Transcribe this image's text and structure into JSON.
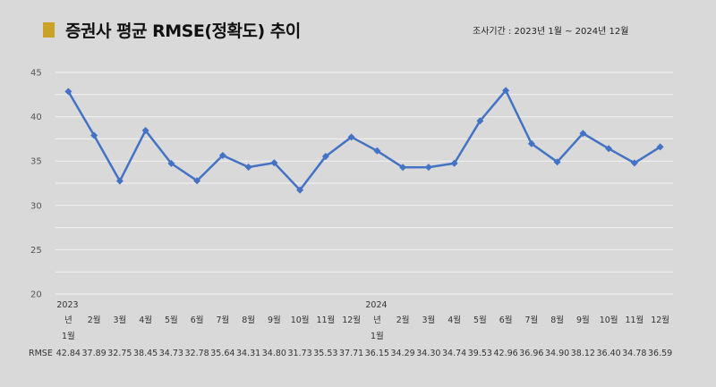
{
  "title": "증권사 평균 RMSE(정확도) 추이",
  "period": "조사기간 : 2023년 1월 ~ 2024년 12월",
  "colors": {
    "line": "#4472c4",
    "accent": "#c9a227",
    "background": "#d9d9d9",
    "grid": "#f2f2f2"
  },
  "chart_data": {
    "type": "line",
    "ylim": [
      20,
      45
    ],
    "yticks": [
      20,
      25,
      30,
      35,
      40,
      45
    ],
    "grid": true,
    "year_labels": [
      "2023",
      "2024"
    ],
    "categories": [
      "1월",
      "2월",
      "3월",
      "4월",
      "5월",
      "6월",
      "7월",
      "8월",
      "9월",
      "10월",
      "11월",
      "12월",
      "1월",
      "2월",
      "3월",
      "4월",
      "5월",
      "6월",
      "7월",
      "8월",
      "9월",
      "10월",
      "11월",
      "12월"
    ],
    "category_display": [
      "년",
      "2월",
      "3월",
      "4월",
      "5월",
      "6월",
      "7월",
      "8월",
      "9월",
      "10월",
      "11월",
      "12월",
      "년",
      "2월",
      "3월",
      "4월",
      "5월",
      "6월",
      "7월",
      "8월",
      "9월",
      "10월",
      "11월",
      "12월"
    ],
    "first_month_label": "1월",
    "series": [
      {
        "name": "RMSE",
        "values": [
          42.84,
          37.89,
          32.75,
          38.45,
          34.73,
          32.78,
          35.64,
          34.31,
          34.8,
          31.73,
          35.53,
          37.71,
          36.15,
          34.29,
          34.3,
          34.74,
          39.53,
          42.96,
          36.96,
          34.9,
          38.12,
          36.4,
          34.78,
          36.59
        ]
      }
    ],
    "value_labels": [
      "42.84",
      "37.89",
      "32.75",
      "38.45",
      "34.73",
      "32.78",
      "35.64",
      "34.31",
      "34.80",
      "31.73",
      "35.53",
      "37.71",
      "36.15",
      "34.29",
      "34.30",
      "34.74",
      "39.53",
      "42.96",
      "36.96",
      "34.90",
      "38.12",
      "36.40",
      "34.78",
      "36.59"
    ]
  }
}
